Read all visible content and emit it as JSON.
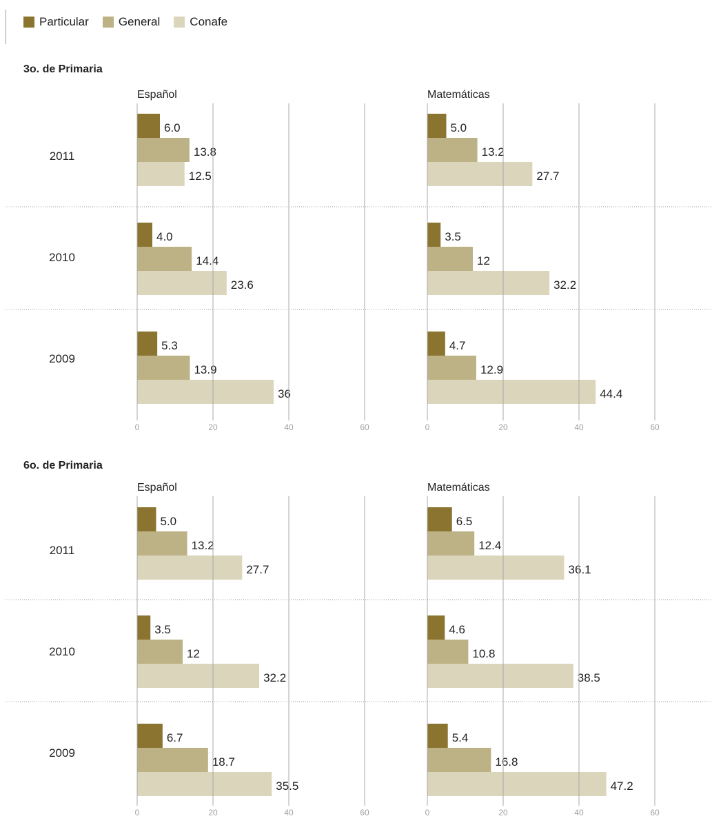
{
  "legend": {
    "items": [
      {
        "label": "Particular",
        "color": "#8b7430"
      },
      {
        "label": "General",
        "color": "#bcb286"
      },
      {
        "label": "Conafe",
        "color": "#dbd5bb"
      }
    ]
  },
  "sections": [
    {
      "title": "3o. de Primaria"
    },
    {
      "title": "6o. de Primaria"
    }
  ],
  "chart_data": [
    {
      "type": "bar",
      "orientation": "horizontal",
      "section": "3o. de Primaria",
      "title": "Español",
      "categories": [
        "2011",
        "2010",
        "2009"
      ],
      "series": [
        {
          "name": "Particular",
          "values": [
            6.0,
            4.0,
            5.3
          ],
          "labels": [
            "6.0",
            "4.0",
            "5.3"
          ]
        },
        {
          "name": "General",
          "values": [
            13.8,
            14.4,
            13.9
          ],
          "labels": [
            "13.8",
            "14.4",
            "13.9"
          ]
        },
        {
          "name": "Conafe",
          "values": [
            12.5,
            23.6,
            36
          ],
          "labels": [
            "12.5",
            "23.6",
            "36"
          ]
        }
      ],
      "xlim": [
        0,
        60
      ],
      "xticks": [
        "0",
        "20",
        "40",
        "60"
      ],
      "grid": true,
      "legend": "top"
    },
    {
      "type": "bar",
      "orientation": "horizontal",
      "section": "3o. de Primaria",
      "title": "Matemáticas",
      "categories": [
        "2011",
        "2010",
        "2009"
      ],
      "series": [
        {
          "name": "Particular",
          "values": [
            5.0,
            3.5,
            4.7
          ],
          "labels": [
            "5.0",
            "3.5",
            "4.7"
          ]
        },
        {
          "name": "General",
          "values": [
            13.2,
            12,
            12.9
          ],
          "labels": [
            "13.2",
            "12",
            "12.9"
          ]
        },
        {
          "name": "Conafe",
          "values": [
            27.7,
            32.2,
            44.4
          ],
          "labels": [
            "27.7",
            "32.2",
            "44.4"
          ]
        }
      ],
      "xlim": [
        0,
        60
      ],
      "xticks": [
        "0",
        "20",
        "40",
        "60"
      ],
      "grid": true,
      "legend": "top"
    },
    {
      "type": "bar",
      "orientation": "horizontal",
      "section": "6o. de Primaria",
      "title": "Español",
      "categories": [
        "2011",
        "2010",
        "2009"
      ],
      "series": [
        {
          "name": "Particular",
          "values": [
            5.0,
            3.5,
            6.7
          ],
          "labels": [
            "5.0",
            "3.5",
            "6.7"
          ]
        },
        {
          "name": "General",
          "values": [
            13.2,
            12,
            18.7
          ],
          "labels": [
            "13.2",
            "12",
            "18.7"
          ]
        },
        {
          "name": "Conafe",
          "values": [
            27.7,
            32.2,
            35.5
          ],
          "labels": [
            "27.7",
            "32.2",
            "35.5"
          ]
        }
      ],
      "xlim": [
        0,
        60
      ],
      "xticks": [
        "0",
        "20",
        "40",
        "60"
      ],
      "grid": true,
      "legend": "top"
    },
    {
      "type": "bar",
      "orientation": "horizontal",
      "section": "6o. de Primaria",
      "title": "Matemáticas",
      "categories": [
        "2011",
        "2010",
        "2009"
      ],
      "series": [
        {
          "name": "Particular",
          "values": [
            6.5,
            4.6,
            5.4
          ],
          "labels": [
            "6.5",
            "4.6",
            "5.4"
          ]
        },
        {
          "name": "General",
          "values": [
            12.4,
            10.8,
            16.8
          ],
          "labels": [
            "12.4",
            "10.8",
            "16.8"
          ]
        },
        {
          "name": "Conafe",
          "values": [
            36.1,
            38.5,
            47.2
          ],
          "labels": [
            "36.1",
            "38.5",
            "47.2"
          ]
        }
      ],
      "xlim": [
        0,
        60
      ],
      "xticks": [
        "0",
        "20",
        "40",
        "60"
      ],
      "grid": true,
      "legend": "top"
    }
  ]
}
